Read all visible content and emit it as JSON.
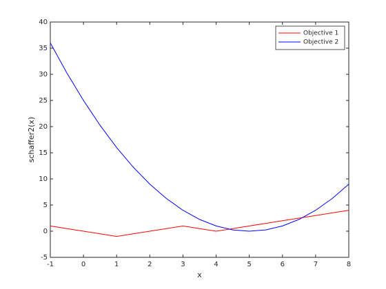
{
  "chart_data": {
    "type": "line",
    "xlabel": "x",
    "ylabel": "schaffer2(x)",
    "x": [
      -1,
      -0.5,
      0,
      0.5,
      1,
      1.5,
      2,
      2.5,
      3,
      3.5,
      4,
      4.5,
      5,
      5.5,
      6,
      6.5,
      7,
      7.5,
      8
    ],
    "series": [
      {
        "name": "Objective 1",
        "color": "#ff0000",
        "values": [
          1,
          0.5,
          0,
          -0.5,
          -1,
          -0.5,
          0,
          0.5,
          1,
          0.5,
          0,
          0.5,
          1,
          1.5,
          2,
          2.5,
          3,
          3.5,
          4
        ]
      },
      {
        "name": "Objective 2",
        "color": "#0000ff",
        "values": [
          36,
          30.25,
          25,
          20.25,
          16,
          12.25,
          9,
          6.25,
          4,
          2.25,
          1,
          0.25,
          0,
          0.25,
          1,
          2.25,
          4,
          6.25,
          9
        ]
      }
    ],
    "xlim": [
      -1,
      8
    ],
    "xticks": [
      -1,
      0,
      1,
      2,
      3,
      4,
      5,
      6,
      7,
      8
    ],
    "ylim": [
      -5,
      40
    ],
    "yticks": [
      -5,
      0,
      5,
      10,
      15,
      20,
      25,
      30,
      35,
      40
    ],
    "grid": false,
    "legend": "top-right"
  }
}
